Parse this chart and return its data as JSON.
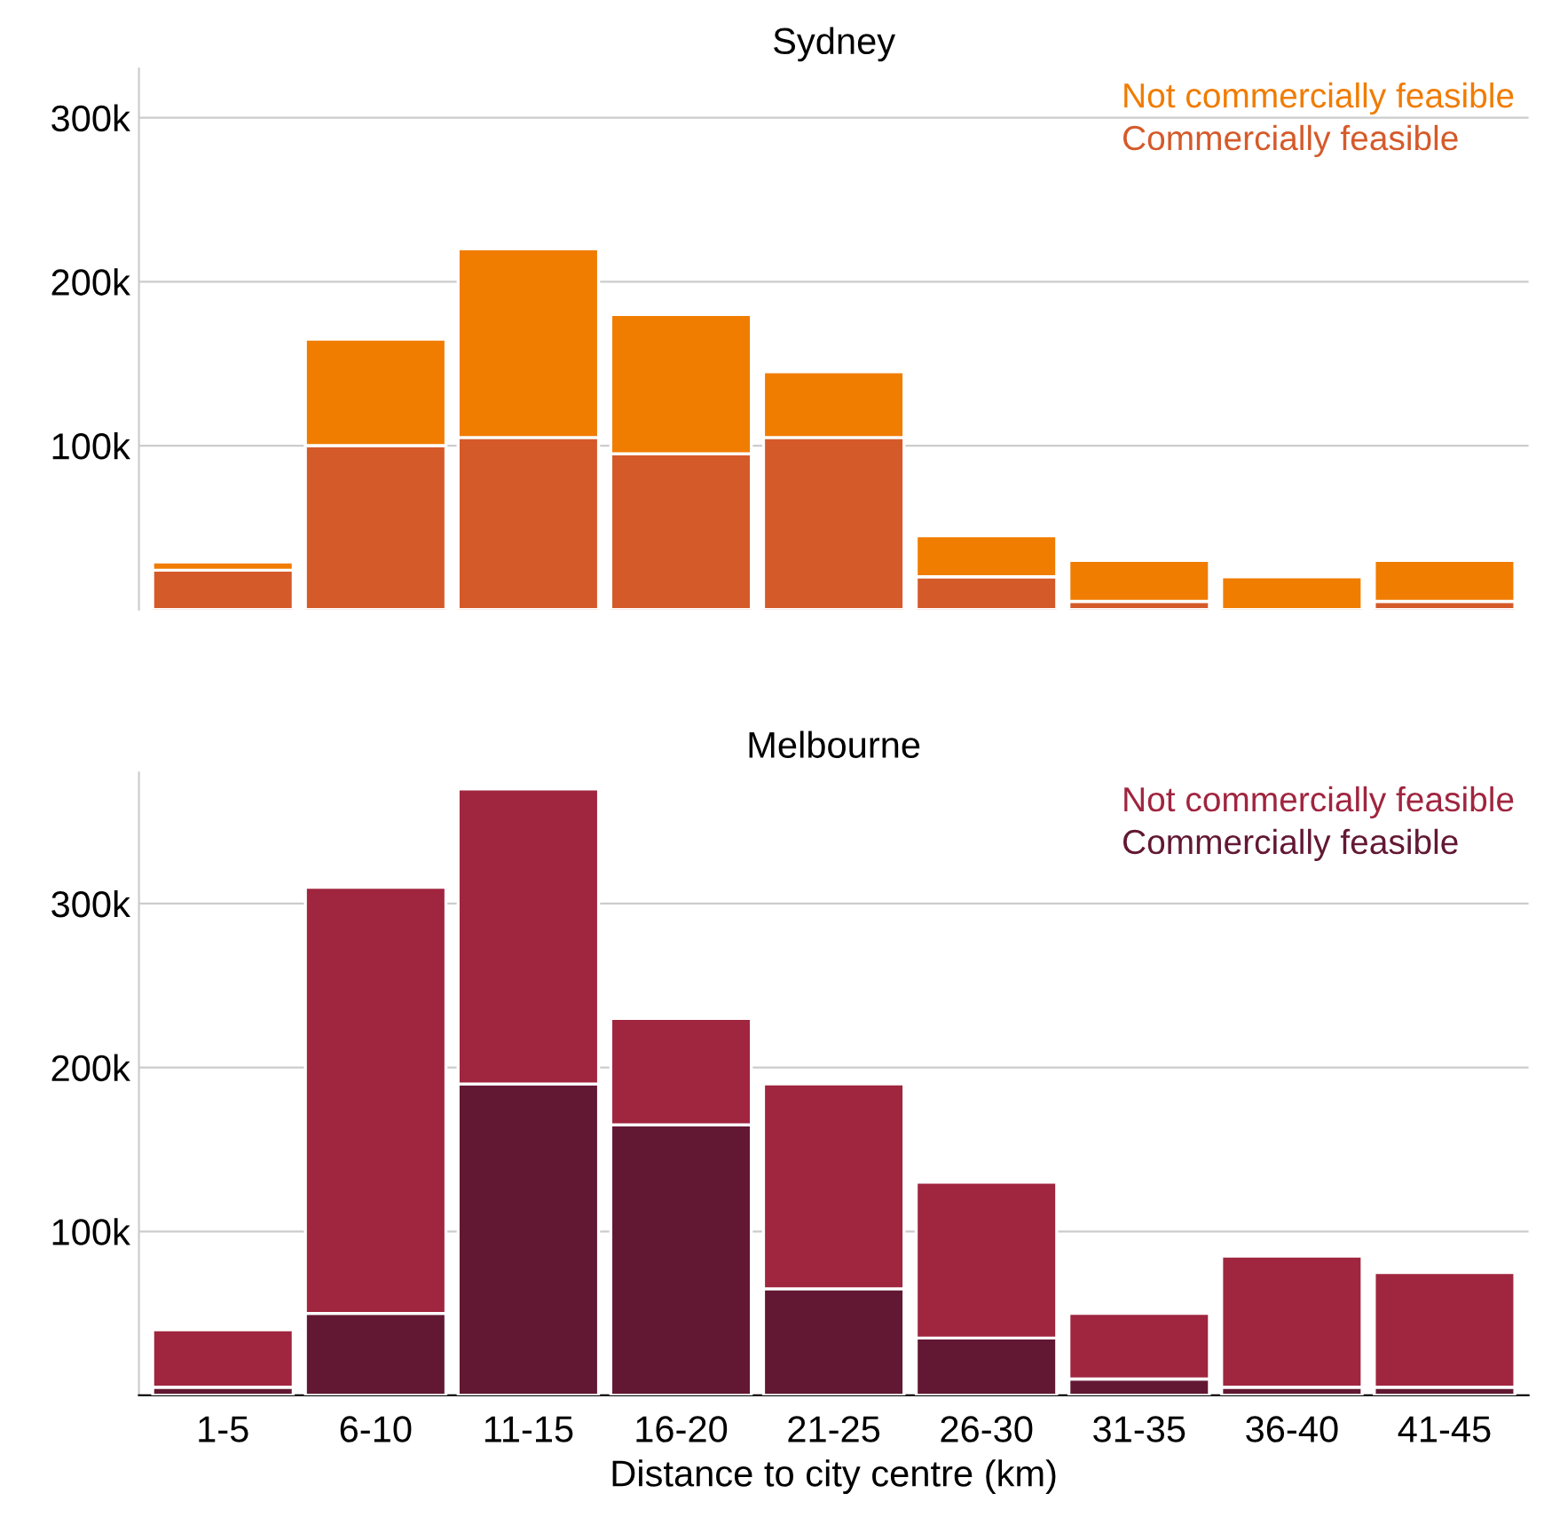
{
  "chart_data": [
    {
      "type": "bar",
      "title": "Sydney",
      "stacked": true,
      "categories": [
        null,
        null,
        null,
        null,
        null,
        null,
        null,
        null,
        null
      ],
      "series": [
        {
          "name": "Commercially feasible",
          "color": "#d55a2a",
          "values": [
            24000,
            100000,
            105000,
            95000,
            105000,
            20000,
            5000,
            0,
            5000
          ]
        },
        {
          "name": "Not commercially feasible",
          "color": "#f07c00",
          "values": [
            5000,
            65000,
            115000,
            85000,
            40000,
            25000,
            25000,
            20000,
            25000
          ]
        }
      ],
      "ylim": [
        0,
        330000
      ],
      "yticks": [
        {
          "value": 100000,
          "label": "100k"
        },
        {
          "value": 200000,
          "label": "200k"
        },
        {
          "value": 300000,
          "label": "300k"
        }
      ],
      "grid": "y",
      "legend": "top right",
      "tick_labels": "y"
    },
    {
      "type": "bar",
      "title": "Melbourne",
      "stacked": true,
      "xlabel": "Distance to city centre (km)",
      "categories": [
        "1-5",
        "6-10",
        "11-15",
        "16-20",
        "21-25",
        "26-30",
        "31-35",
        "36-40",
        "41-45"
      ],
      "series": [
        {
          "name": "Commercially feasible",
          "color": "#621833",
          "values": [
            5000,
            50000,
            190000,
            165000,
            65000,
            35000,
            10000,
            5000,
            5000
          ]
        },
        {
          "name": "Not commercially feasible",
          "color": "#a0253f",
          "values": [
            35000,
            260000,
            180000,
            65000,
            125000,
            95000,
            40000,
            80000,
            70000
          ]
        }
      ],
      "ylim": [
        0,
        380000
      ],
      "yticks": [
        {
          "value": 100000,
          "label": "100k"
        },
        {
          "value": 200000,
          "label": "200k"
        },
        {
          "value": 300000,
          "label": "300k"
        }
      ],
      "grid": "y",
      "legend": "top right"
    }
  ]
}
